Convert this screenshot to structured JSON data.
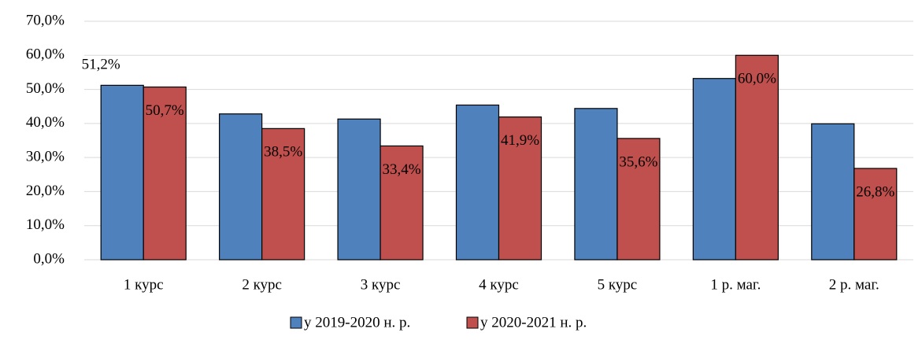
{
  "chart_data": {
    "type": "bar",
    "categories": [
      "1 курс",
      "2 курс",
      "3 курс",
      "4 курс",
      "5 курс",
      "1 р. маг.",
      "2 р. маг."
    ],
    "series": [
      {
        "name": "у 2019-2020 н. р.",
        "color": "#4f81bd",
        "values": [
          51.2,
          42.8,
          41.3,
          45.4,
          44.4,
          53.2,
          39.9
        ],
        "value_labels": [
          "51,2%",
          null,
          null,
          null,
          null,
          null,
          null
        ]
      },
      {
        "name": "у 2020-2021 н. р.",
        "color": "#c0504d",
        "values": [
          50.7,
          38.5,
          33.4,
          41.9,
          35.6,
          60.0,
          26.8
        ],
        "value_labels": [
          "50,7%",
          "38,5%",
          "33,4%",
          "41,9%",
          "35,6%",
          "60,0%",
          "26,8%"
        ]
      }
    ],
    "ylim": [
      0,
      70
    ],
    "yticks": [
      {
        "value": 0,
        "label": "0,0%"
      },
      {
        "value": 10,
        "label": "10,0%"
      },
      {
        "value": 20,
        "label": "20,0%"
      },
      {
        "value": 30,
        "label": "30,0%"
      },
      {
        "value": 40,
        "label": "40,0%"
      },
      {
        "value": 50,
        "label": "50,0%"
      },
      {
        "value": 60,
        "label": "60,0%"
      },
      {
        "value": 70,
        "label": "70,0%"
      }
    ],
    "grid": true,
    "legend": "bottom"
  }
}
